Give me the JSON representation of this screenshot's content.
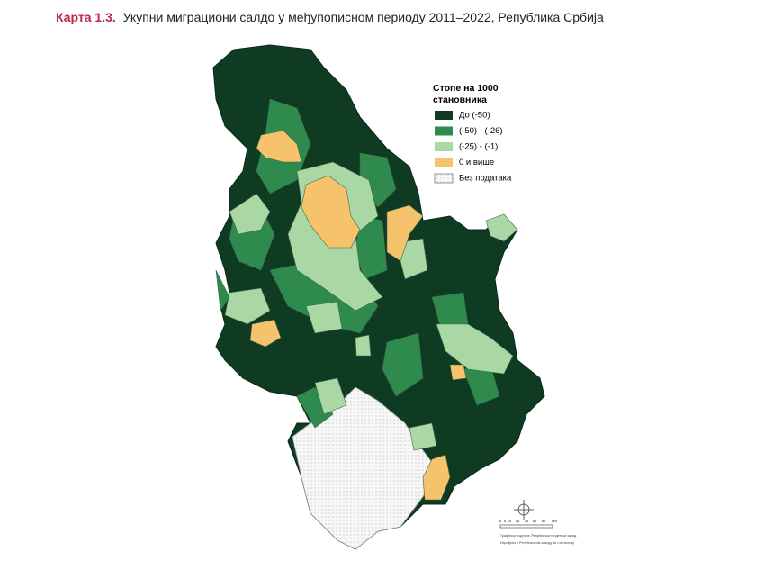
{
  "header": {
    "label": "Карта 1.3.",
    "title": "Укупни миграциони салдо у међупописном периоду 2011–2022, Република Србија"
  },
  "legend": {
    "title": [
      "Стопе на 1000",
      "становника"
    ],
    "items": [
      {
        "label": "До (-50)",
        "color": "#0f3b22"
      },
      {
        "label": "(-50) - (-26)",
        "color": "#2f8a4e"
      },
      {
        "label": "(-25) - (-1)",
        "color": "#a9d8a4"
      },
      {
        "label": "0 и више",
        "color": "#f6c26b"
      },
      {
        "label": "Без података",
        "color": "#f4f4f4"
      }
    ]
  },
  "scale": {
    "labels": [
      "0",
      "5",
      "10",
      "20",
      "30",
      "40",
      "50",
      "km"
    ]
  },
  "credits": [
    "Графичка подлога: Републички геодетски завод",
    "Израђено у Републичком заводу за статистику"
  ]
}
